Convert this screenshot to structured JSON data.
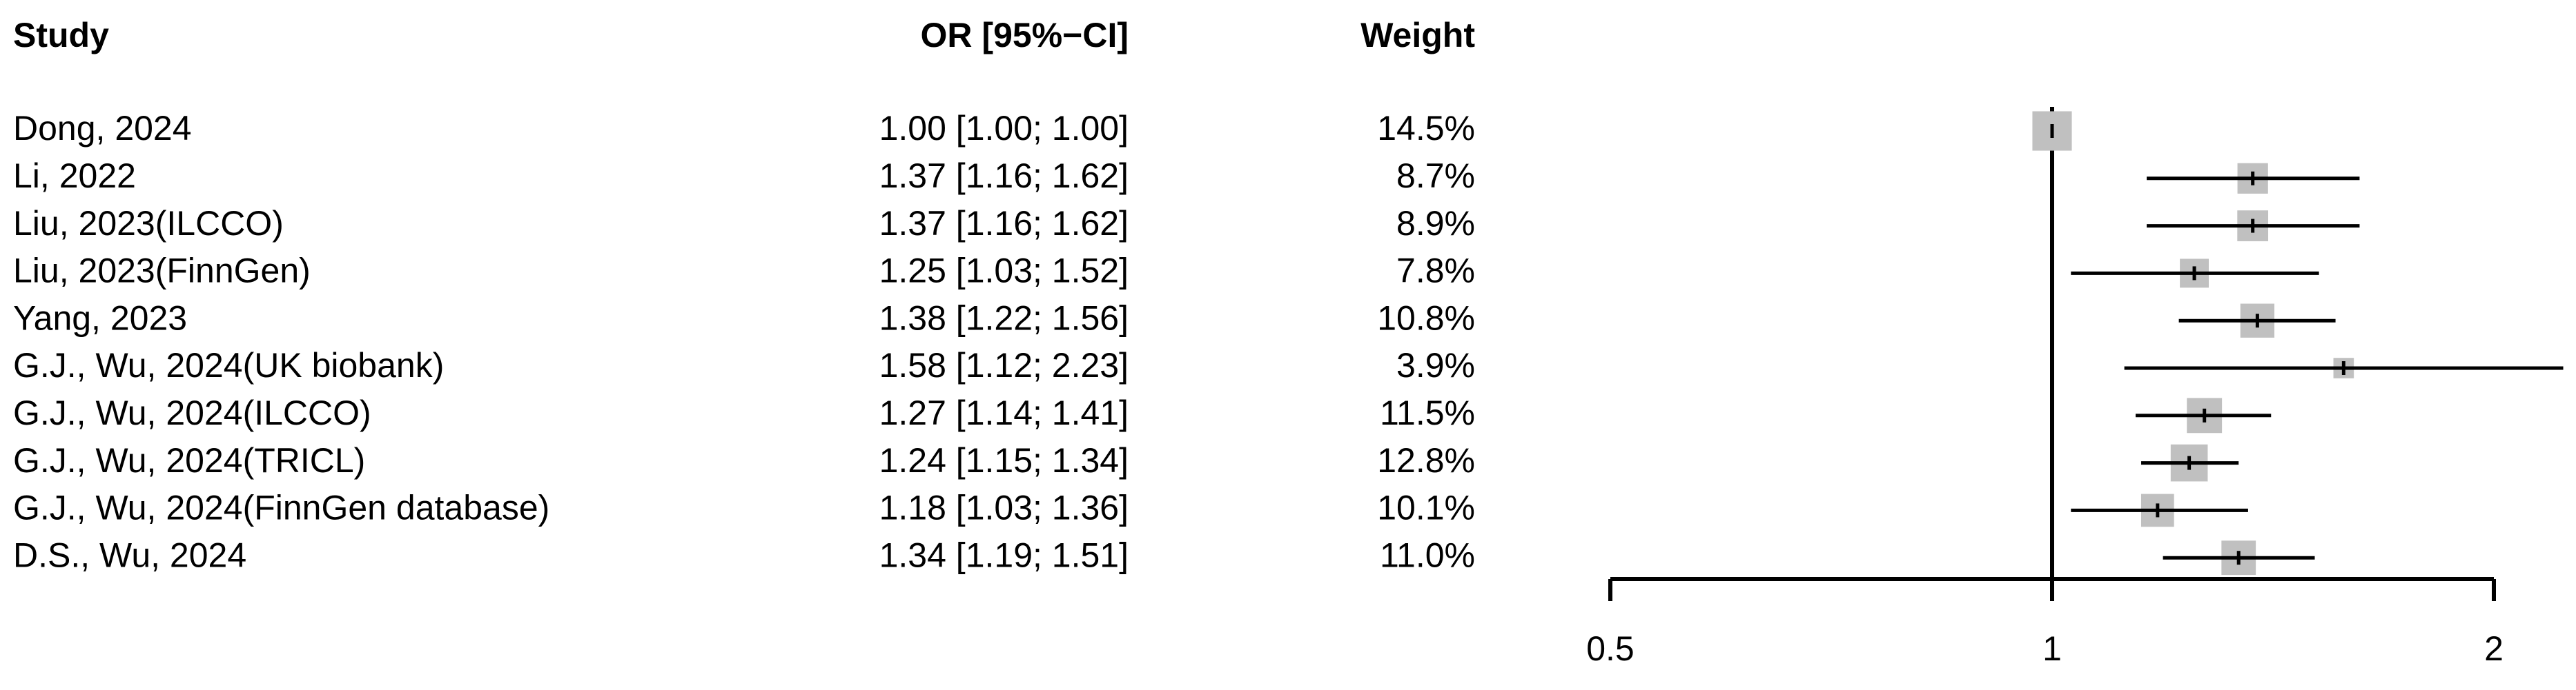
{
  "chart_data": {
    "type": "forest",
    "columns": [
      "Study",
      "OR [95%−CI]",
      "Weight"
    ],
    "categories": [
      "Dong, 2024",
      "Li, 2022",
      "Liu, 2023(ILCCO)",
      "Liu, 2023(FinnGen)",
      "Yang, 2023",
      "G.J., Wu, 2024(UK biobank)",
      "G.J., Wu, 2024(ILCCO)",
      "G.J., Wu, 2024(TRICL)",
      "G.J., Wu, 2024(FinnGen database)",
      "D.S., Wu, 2024"
    ],
    "values": [
      1.0,
      1.37,
      1.37,
      1.25,
      1.38,
      1.58,
      1.27,
      1.24,
      1.18,
      1.34
    ],
    "lower": [
      1.0,
      1.16,
      1.16,
      1.03,
      1.22,
      1.12,
      1.14,
      1.15,
      1.03,
      1.19
    ],
    "upper": [
      1.0,
      1.62,
      1.62,
      1.52,
      1.56,
      2.23,
      1.41,
      1.34,
      1.36,
      1.51
    ],
    "ci_labels": [
      "1.00 [1.00; 1.00]",
      "1.37 [1.16; 1.62]",
      "1.37 [1.16; 1.62]",
      "1.25 [1.03; 1.52]",
      "1.38 [1.22; 1.56]",
      "1.58 [1.12; 2.23]",
      "1.27 [1.14; 1.41]",
      "1.24 [1.15; 1.34]",
      "1.18 [1.03; 1.36]",
      "1.34 [1.19; 1.51]"
    ],
    "weights": [
      14.5,
      8.7,
      8.9,
      7.8,
      10.8,
      3.9,
      11.5,
      12.8,
      10.1,
      11.0
    ],
    "weight_labels": [
      "14.5%",
      "8.7%",
      "8.9%",
      "7.8%",
      "10.8%",
      "3.9%",
      "11.5%",
      "12.8%",
      "10.1%",
      "11.0%"
    ],
    "color": "#c0c0c0",
    "log_scale": true,
    "reference": 1,
    "xlim": [
      0.5,
      2
    ],
    "xticks": [
      0.5,
      1,
      2
    ]
  }
}
